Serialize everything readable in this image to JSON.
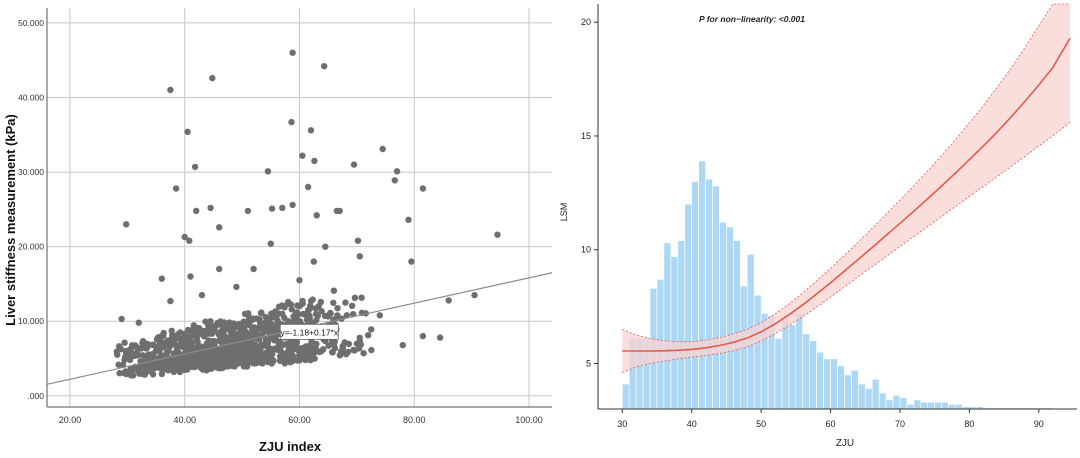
{
  "chart_data": [
    {
      "type": "scatter",
      "title": "",
      "xlabel": "ZJU index",
      "ylabel": "Liver stiffness measurement  (kPa)",
      "xlim": [
        16.0,
        104.0
      ],
      "ylim": [
        -1.5,
        52.0
      ],
      "xticks": [
        20,
        40,
        60,
        80,
        100
      ],
      "xtick_labels": [
        "20.00",
        "40.00",
        "60.00",
        "80.00",
        "100.00"
      ],
      "yticks": [
        0,
        10,
        20,
        30,
        40,
        50
      ],
      "ytick_labels": [
        ".000",
        "10.000",
        "20.000",
        "30.000",
        "40.000",
        "50.000"
      ],
      "grid": true,
      "point_color": "#6e6e6e",
      "line_color": "#8c8c8c",
      "fit_line": {
        "intercept": -1.18,
        "slope": 0.17,
        "label": "y=-1.18+0.17*x"
      },
      "outliers": [
        [
          29.8,
          23.0
        ],
        [
          37.5,
          41.0
        ],
        [
          38.5,
          27.8
        ],
        [
          40.5,
          35.4
        ],
        [
          41.8,
          30.7
        ],
        [
          44.8,
          42.6
        ],
        [
          44.5,
          25.2
        ],
        [
          42.0,
          24.8
        ],
        [
          40.0,
          21.3
        ],
        [
          40.8,
          20.8
        ],
        [
          46.0,
          22.6
        ],
        [
          51.0,
          24.8
        ],
        [
          54.5,
          30.1
        ],
        [
          55.2,
          25.1
        ],
        [
          57.0,
          25.2
        ],
        [
          58.8,
          46.0
        ],
        [
          58.6,
          36.7
        ],
        [
          58.8,
          25.6
        ],
        [
          60.5,
          32.2
        ],
        [
          62.0,
          35.6
        ],
        [
          64.3,
          44.2
        ],
        [
          62.6,
          31.5
        ],
        [
          61.5,
          28.0
        ],
        [
          63.0,
          24.2
        ],
        [
          64.5,
          20.0
        ],
        [
          66.5,
          24.8
        ],
        [
          67.0,
          24.8
        ],
        [
          69.5,
          31.0
        ],
        [
          70.2,
          20.8
        ],
        [
          74.5,
          33.1
        ],
        [
          77.0,
          30.1
        ],
        [
          76.6,
          28.9
        ],
        [
          79.0,
          23.6
        ],
        [
          81.5,
          27.8
        ],
        [
          79.5,
          18.0
        ],
        [
          81.5,
          8.0
        ],
        [
          84.5,
          7.8
        ],
        [
          86.0,
          12.8
        ],
        [
          90.5,
          13.5
        ],
        [
          94.5,
          21.6
        ],
        [
          78.0,
          6.8
        ],
        [
          72.5,
          8.9
        ],
        [
          70.5,
          18.7
        ],
        [
          66.0,
          14.1
        ],
        [
          55.0,
          20.4
        ],
        [
          49.0,
          14.6
        ],
        [
          36.0,
          15.7
        ],
        [
          37.5,
          12.7
        ],
        [
          32.0,
          9.8
        ],
        [
          29.0,
          10.3
        ],
        [
          43.0,
          13.5
        ],
        [
          52.0,
          17.0
        ],
        [
          60.0,
          15.5
        ],
        [
          68.0,
          12.5
        ],
        [
          74.0,
          10.8
        ],
        [
          70.0,
          7.0
        ],
        [
          46.0,
          17.0
        ],
        [
          41.0,
          16.0
        ],
        [
          57.0,
          11.0
        ],
        [
          62.5,
          18.0
        ]
      ],
      "cluster": {
        "x_range": [
          26.0,
          72.0
        ],
        "y_center_range": [
          2.0,
          10.0
        ],
        "n": 1000
      }
    },
    {
      "type": "line",
      "title": "P for non−linearity: <0.001",
      "xlabel": "ZJU",
      "ylabel": "LSM",
      "xlim": [
        26.5,
        95.5
      ],
      "ylim": [
        3.0,
        20.8
      ],
      "xticks": [
        30,
        40,
        50,
        60,
        70,
        80,
        90
      ],
      "xtick_labels": [
        "30",
        "40",
        "50",
        "60",
        "70",
        "80",
        "90"
      ],
      "yticks": [
        5,
        10,
        15,
        20
      ],
      "ytick_labels": [
        "5",
        "10",
        "15",
        "20"
      ],
      "grid": false,
      "line_color": "#e35a4f",
      "band_color": "#f8d3d0",
      "histogram_color": "#add8f5",
      "spline": {
        "x": [
          30.0,
          32.0,
          34.0,
          36.0,
          38.0,
          40.0,
          42.0,
          44.0,
          46.0,
          48.0,
          50.0,
          52.0,
          54.0,
          56.0,
          58.0,
          60.0,
          62.0,
          64.0,
          66.0,
          68.0,
          70.0,
          72.0,
          74.0,
          76.0,
          78.0,
          80.0,
          82.0,
          84.0,
          86.0,
          88.0,
          90.0,
          92.0,
          94.5
        ],
        "y": [
          5.55,
          5.55,
          5.55,
          5.56,
          5.58,
          5.62,
          5.69,
          5.79,
          5.93,
          6.12,
          6.39,
          6.74,
          7.14,
          7.58,
          8.06,
          8.55,
          9.06,
          9.58,
          10.1,
          10.63,
          11.16,
          11.7,
          12.24,
          12.8,
          13.37,
          13.96,
          14.56,
          15.18,
          15.84,
          16.52,
          17.24,
          18.0,
          19.3
        ],
        "lower": [
          4.6,
          4.85,
          5.0,
          5.1,
          5.2,
          5.28,
          5.35,
          5.44,
          5.56,
          5.74,
          5.99,
          6.3,
          6.66,
          7.06,
          7.48,
          7.92,
          8.36,
          8.82,
          9.26,
          9.7,
          10.14,
          10.58,
          11.02,
          11.46,
          11.9,
          12.34,
          12.78,
          13.22,
          13.66,
          14.1,
          14.55,
          15.0,
          15.6
        ],
        "upper": [
          6.5,
          6.25,
          6.1,
          6.0,
          5.96,
          5.96,
          6.03,
          6.14,
          6.3,
          6.5,
          6.79,
          7.18,
          7.62,
          8.1,
          8.64,
          9.18,
          9.76,
          10.34,
          10.94,
          11.56,
          12.18,
          12.82,
          13.46,
          14.14,
          14.84,
          15.58,
          16.34,
          17.14,
          17.98,
          18.88,
          19.84,
          20.8,
          22.2
        ]
      },
      "histogram": {
        "bin_start": 30.0,
        "bin_width": 1.0,
        "heights": [
          4.1,
          6.1,
          6.1,
          6.1,
          8.3,
          8.7,
          10.3,
          9.7,
          10.4,
          12.0,
          13.0,
          13.9,
          13.1,
          12.8,
          11.2,
          11.0,
          10.4,
          8.4,
          9.8,
          8.0,
          7.2,
          7.1,
          6.1,
          6.9,
          6.7,
          7.2,
          6.3,
          6.0,
          5.5,
          5.2,
          5.2,
          4.9,
          4.5,
          4.7,
          4.1,
          3.9,
          4.3,
          3.7,
          3.4,
          3.6,
          3.5,
          3.2,
          3.4,
          3.3,
          3.3,
          3.3,
          3.3,
          3.2,
          3.2,
          3.1,
          3.1,
          3.1,
          3.05,
          3.05,
          3.05,
          3.05,
          3.05,
          3.05,
          3.05,
          3.05,
          3.05,
          3.05
        ]
      }
    }
  ]
}
